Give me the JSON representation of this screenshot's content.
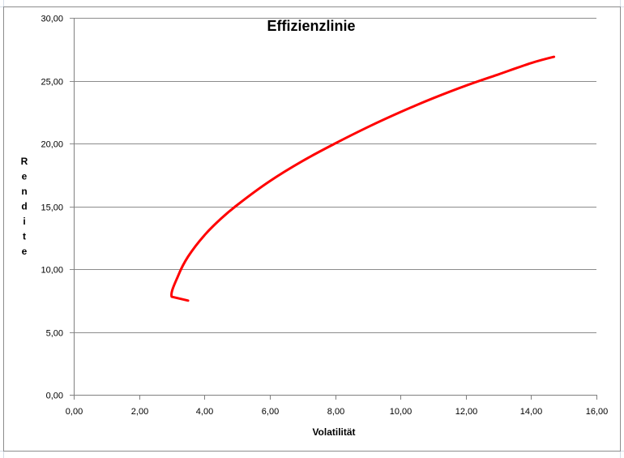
{
  "chart_data": {
    "type": "line",
    "title": "Effizienzlinie",
    "xlabel": "Volatilität",
    "ylabel": "Rendite",
    "xlim": [
      0,
      16
    ],
    "ylim": [
      0,
      30
    ],
    "x_ticks": [
      "0,00",
      "2,00",
      "4,00",
      "6,00",
      "8,00",
      "10,00",
      "12,00",
      "14,00",
      "16,00"
    ],
    "y_ticks": [
      "0,00",
      "5,00",
      "10,00",
      "15,00",
      "20,00",
      "25,00",
      "30,00"
    ],
    "grid": "horizontal",
    "legend": "none",
    "series": [
      {
        "color": "#ff0000",
        "x": [
          3.5,
          3.0,
          3.2,
          3.5,
          4.0,
          4.5,
          5.0,
          6.0,
          7.0,
          8.0,
          9.0,
          10.0,
          11.0,
          12.0,
          13.0,
          14.0,
          14.7
        ],
        "y": [
          7.5,
          7.8,
          9.5,
          11.0,
          12.7,
          14.0,
          15.1,
          17.0,
          18.6,
          20.0,
          21.3,
          22.5,
          23.6,
          24.6,
          25.5,
          26.4,
          26.9
        ]
      }
    ]
  }
}
